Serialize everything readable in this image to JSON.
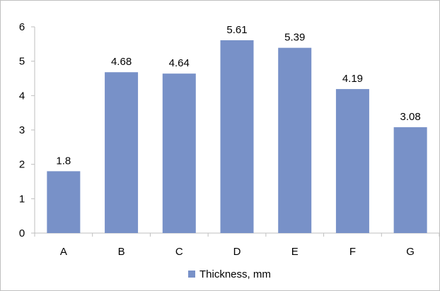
{
  "chart_data": {
    "type": "bar",
    "categories": [
      "A",
      "B",
      "C",
      "D",
      "E",
      "F",
      "G"
    ],
    "series": [
      {
        "name": "Thickness, mm",
        "values": [
          1.8,
          4.68,
          4.64,
          5.61,
          5.39,
          4.19,
          3.08
        ],
        "data_labels": [
          "1.8",
          "4.68",
          "4.64",
          "5.61",
          "5.39",
          "4.19",
          "3.08"
        ],
        "color": "#7891c8"
      }
    ],
    "yticks": [
      "0",
      "1",
      "2",
      "3",
      "4",
      "5",
      "6"
    ],
    "ylim": [
      0,
      6
    ],
    "grid": false,
    "legend_position": "bottom",
    "axis_color": "#bfbfbf"
  }
}
